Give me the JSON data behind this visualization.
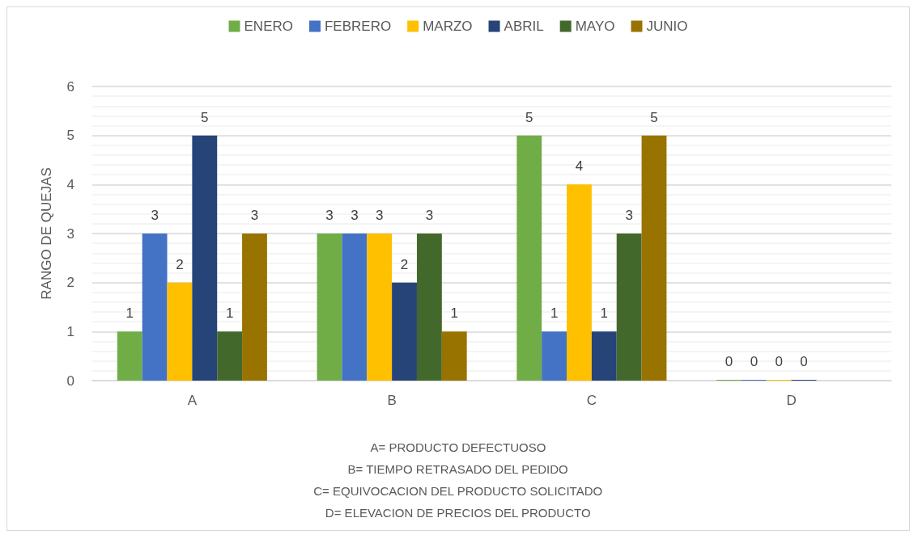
{
  "chart_data": {
    "type": "bar",
    "ylabel": "RANGO DE QUEJAS",
    "categories": [
      "A",
      "B",
      "C",
      "D"
    ],
    "series": [
      {
        "name": "ENERO",
        "color": "#70ad47",
        "values": [
          1,
          3,
          5,
          0
        ]
      },
      {
        "name": "FEBRERO",
        "color": "#4472c4",
        "values": [
          3,
          3,
          1,
          0
        ]
      },
      {
        "name": "MARZO",
        "color": "#ffc000",
        "values": [
          2,
          3,
          4,
          0
        ]
      },
      {
        "name": "ABRIL",
        "color": "#264478",
        "values": [
          5,
          2,
          1,
          0
        ]
      },
      {
        "name": "MAYO",
        "color": "#43682b",
        "values": [
          1,
          3,
          3,
          null
        ]
      },
      {
        "name": "JUNIO",
        "color": "#997300",
        "values": [
          3,
          1,
          5,
          null
        ]
      }
    ],
    "ylim": [
      0,
      6
    ],
    "yticks": [
      0,
      1,
      2,
      3,
      4,
      5,
      6
    ],
    "grid": true,
    "legend": "top",
    "data_labels": true,
    "annotations": [
      "A= PRODUCTO DEFECTUOSO",
      "B= TIEMPO RETRASADO DEL PEDIDO",
      "C= EQUIVOCACION DEL PRODUCTO SOLICITADO",
      "D= ELEVACION DE PRECIOS DEL PRODUCTO"
    ]
  }
}
